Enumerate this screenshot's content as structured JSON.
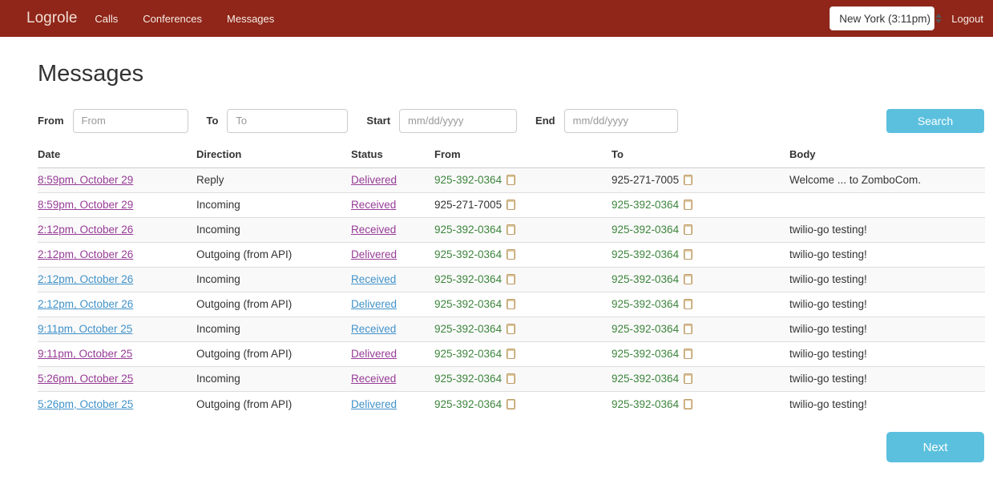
{
  "navbar": {
    "brand": "Logrole",
    "items": [
      {
        "label": "Calls"
      },
      {
        "label": "Conferences"
      },
      {
        "label": "Messages"
      }
    ],
    "timezone_select": {
      "value": "New York (3:11pm)"
    },
    "logout_label": "Logout"
  },
  "page": {
    "title": "Messages"
  },
  "filters": {
    "from": {
      "label": "From",
      "placeholder": "From",
      "value": ""
    },
    "to": {
      "label": "To",
      "placeholder": "To",
      "value": ""
    },
    "start": {
      "label": "Start",
      "placeholder": "mm/dd/yyyy",
      "value": ""
    },
    "end": {
      "label": "End",
      "placeholder": "mm/dd/yyyy",
      "value": ""
    },
    "search_label": "Search"
  },
  "table": {
    "columns": [
      "Date",
      "Direction",
      "Status",
      "From",
      "To",
      "Body"
    ],
    "rows": [
      {
        "date": "8:59pm, October 29",
        "direction": "Reply",
        "status": "Delivered",
        "from": "925-392-0364",
        "from_owned": true,
        "to": "925-271-7005",
        "to_owned": false,
        "body": "Welcome ... to ZomboCom.",
        "visited": true
      },
      {
        "date": "8:59pm, October 29",
        "direction": "Incoming",
        "status": "Received",
        "from": "925-271-7005",
        "from_owned": false,
        "to": "925-392-0364",
        "to_owned": true,
        "body": "",
        "visited": true
      },
      {
        "date": "2:12pm, October 26",
        "direction": "Incoming",
        "status": "Received",
        "from": "925-392-0364",
        "from_owned": true,
        "to": "925-392-0364",
        "to_owned": true,
        "body": "twilio-go testing!",
        "visited": true
      },
      {
        "date": "2:12pm, October 26",
        "direction": "Outgoing (from API)",
        "status": "Delivered",
        "from": "925-392-0364",
        "from_owned": true,
        "to": "925-392-0364",
        "to_owned": true,
        "body": "twilio-go testing!",
        "visited": true
      },
      {
        "date": "2:12pm, October 26",
        "direction": "Incoming",
        "status": "Received",
        "from": "925-392-0364",
        "from_owned": true,
        "to": "925-392-0364",
        "to_owned": true,
        "body": "twilio-go testing!",
        "visited": false
      },
      {
        "date": "2:12pm, October 26",
        "direction": "Outgoing (from API)",
        "status": "Delivered",
        "from": "925-392-0364",
        "from_owned": true,
        "to": "925-392-0364",
        "to_owned": true,
        "body": "twilio-go testing!",
        "visited": false
      },
      {
        "date": "9:11pm, October 25",
        "direction": "Incoming",
        "status": "Received",
        "from": "925-392-0364",
        "from_owned": true,
        "to": "925-392-0364",
        "to_owned": true,
        "body": "twilio-go testing!",
        "visited": false
      },
      {
        "date": "9:11pm, October 25",
        "direction": "Outgoing (from API)",
        "status": "Delivered",
        "from": "925-392-0364",
        "from_owned": true,
        "to": "925-392-0364",
        "to_owned": true,
        "body": "twilio-go testing!",
        "visited": true
      },
      {
        "date": "5:26pm, October 25",
        "direction": "Incoming",
        "status": "Received",
        "from": "925-392-0364",
        "from_owned": true,
        "to": "925-392-0364",
        "to_owned": true,
        "body": "twilio-go testing!",
        "visited": true
      },
      {
        "date": "5:26pm, October 25",
        "direction": "Outgoing (from API)",
        "status": "Delivered",
        "from": "925-392-0364",
        "from_owned": true,
        "to": "925-392-0364",
        "to_owned": true,
        "body": "twilio-go testing!",
        "visited": false
      }
    ]
  },
  "pagination": {
    "next_label": "Next"
  },
  "colors": {
    "navbar_bg": "#8f2619",
    "button_bg": "#5bc0de",
    "link_unvisited": "#4192c9",
    "link_visited": "#963c96",
    "owned_number_green": "#3d853d",
    "text": "#333333",
    "stripe": "#f9f9f9"
  }
}
